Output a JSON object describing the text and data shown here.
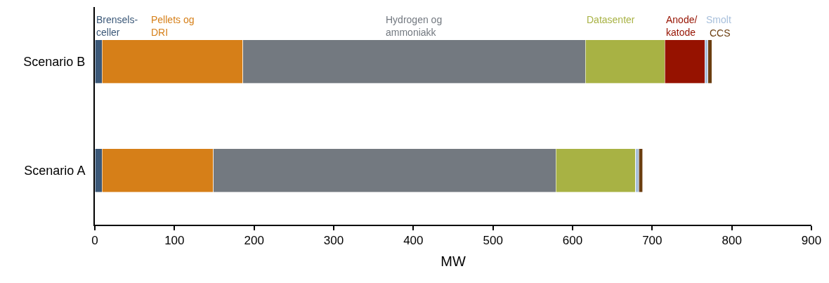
{
  "chart_data": {
    "type": "bar",
    "orientation": "horizontal",
    "stacked": true,
    "categories": [
      "Scenario B",
      "Scenario A"
    ],
    "series": [
      {
        "name": "Brensels- celler",
        "color": "#3b5878",
        "values": [
          9,
          9
        ]
      },
      {
        "name": "Pellets og DRI",
        "color": "#d67f18",
        "values": [
          177,
          140
        ]
      },
      {
        "name": "Hydrogen og ammoniakk",
        "color": "#737980",
        "values": [
          430,
          430
        ]
      },
      {
        "name": "Datasenter",
        "color": "#a8b244",
        "values": [
          100,
          100
        ]
      },
      {
        "name": "Anode/ katode",
        "color": "#961200",
        "values": [
          50,
          0
        ]
      },
      {
        "name": "Smolt",
        "color": "#a8c0dc",
        "values": [
          4,
          4
        ]
      },
      {
        "name": "CCS",
        "color": "#6b3e10",
        "values": [
          5,
          5
        ]
      }
    ],
    "xlabel": "MW",
    "xlim": [
      0,
      900
    ],
    "xticks": [
      0,
      100,
      200,
      300,
      400,
      500,
      600,
      700,
      800,
      900
    ],
    "grid": false
  }
}
